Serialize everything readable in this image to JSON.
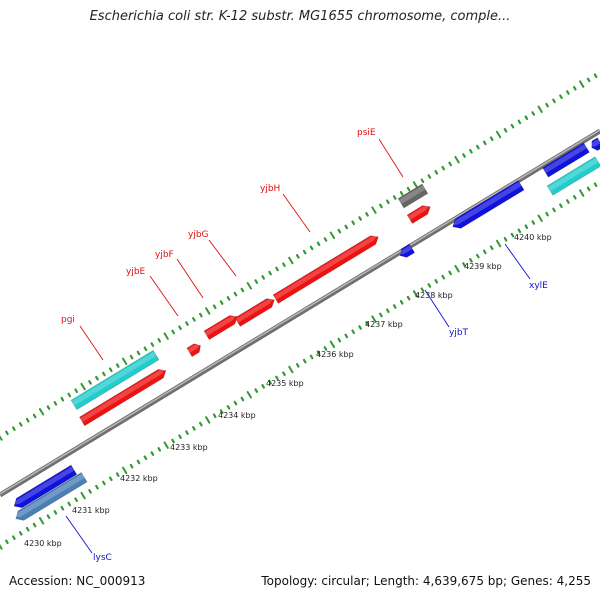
{
  "header": {
    "title": "Escherichia coli str. K-12 substr. MG1655 chromosome, comple..."
  },
  "footer": {
    "accession": "Accession: NC_000913",
    "summary": "Topology: circular; Length: 4,639,675 bp; Genes: 4,255"
  },
  "colors": {
    "backbone": "#8a8a8a",
    "forward_gene": "#ee1111",
    "reverse_gene": "#1111dd",
    "rna_gene": "#22cccc",
    "pseudo_gene": "#666666",
    "steel_gene": "#4a7fb5",
    "tick_forward": "#339933",
    "tick_reverse": "#339933",
    "label_forward": "#dd1111",
    "label_reverse": "#1111cc"
  },
  "ruler": {
    "labels": [
      "4230 kbp",
      "4231 kbp",
      "4232 kbp",
      "4233 kbp",
      "4234 kbp",
      "4235 kbp",
      "4236 kbp",
      "4237 kbp",
      "4238 kbp",
      "4239 kbp",
      "4240 kbp"
    ]
  },
  "genes": {
    "forward": [
      {
        "name": "pgi",
        "color": "forward_gene"
      },
      {
        "name": "yjbE",
        "color": "forward_gene"
      },
      {
        "name": "yjbF",
        "color": "forward_gene"
      },
      {
        "name": "yjbG",
        "color": "forward_gene"
      },
      {
        "name": "yjbH",
        "color": "forward_gene"
      },
      {
        "name": "psiE",
        "color": "forward_gene"
      }
    ],
    "reverse": [
      {
        "name": "lysC",
        "color": "reverse_gene"
      },
      {
        "name": "yjbT",
        "color": "reverse_gene"
      },
      {
        "name": "xylE",
        "color": "reverse_gene"
      }
    ]
  }
}
